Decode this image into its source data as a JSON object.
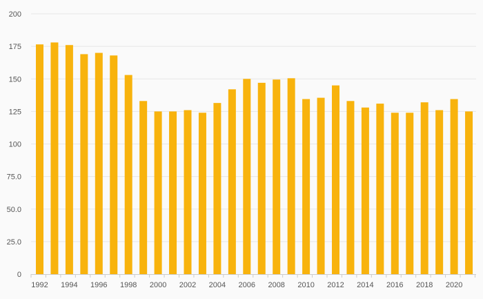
{
  "chart_data": {
    "type": "bar",
    "title": "",
    "xlabel": "",
    "ylabel": "",
    "categories": [
      "1992",
      "1993",
      "1994",
      "1995",
      "1996",
      "1997",
      "1998",
      "1999",
      "2000",
      "2001",
      "2002",
      "2003",
      "2004",
      "2005",
      "2006",
      "2007",
      "2008",
      "2009",
      "2010",
      "2011",
      "2012",
      "2013",
      "2014",
      "2015",
      "2016",
      "2017",
      "2018",
      "2019",
      "2020",
      "2021"
    ],
    "x_tick_labels": [
      "1992",
      "1994",
      "1996",
      "1998",
      "2000",
      "2002",
      "2004",
      "2006",
      "2008",
      "2010",
      "2012",
      "2014",
      "2016",
      "2018",
      "2020"
    ],
    "values": [
      176.5,
      178,
      176,
      169,
      170,
      168,
      153,
      133,
      125,
      125,
      126,
      124,
      131.5,
      142,
      150,
      147,
      149.5,
      150.5,
      134.5,
      135.5,
      145,
      133,
      128,
      131,
      124,
      124,
      132,
      126,
      134.5,
      125
    ],
    "ylim": [
      0,
      200
    ],
    "y_ticks": [
      0,
      25,
      50,
      75,
      100,
      125,
      150,
      175,
      200
    ],
    "y_tick_labels": [
      "0",
      "25.0",
      "50.0",
      "75.0",
      "100",
      "125",
      "150",
      "175",
      "200"
    ],
    "grid": true,
    "legend": "none",
    "colors": {
      "bar": "#f8b30d",
      "grid": "#e6e6e6",
      "axis": "#cccccc",
      "text": "#555555",
      "background": "#fafafa"
    }
  }
}
